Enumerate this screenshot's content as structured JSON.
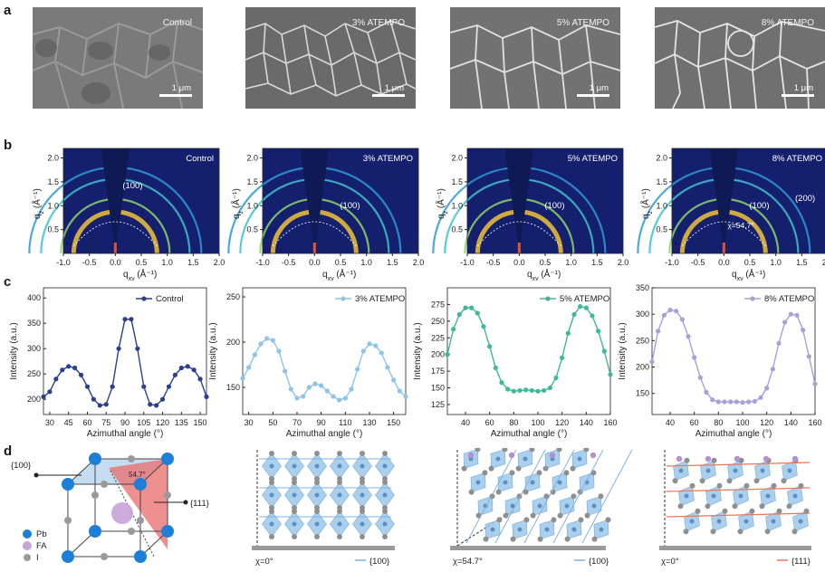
{
  "panel_letters": {
    "a": "a",
    "b": "b",
    "c": "c",
    "d": "d"
  },
  "sem": [
    {
      "label": "Control",
      "scale": "1 μm"
    },
    {
      "label": "3% ATEMPO",
      "scale": "1 μm"
    },
    {
      "label": "5% ATEMPO",
      "scale": "1 μm"
    },
    {
      "label": "8% ATEMPO",
      "scale": "1 μm"
    }
  ],
  "giwaxs": {
    "xlabel": "q",
    "xlabel_sub": "xy",
    "xlabel_unit": " (Å⁻¹)",
    "ylabel": "q",
    "ylabel_sub": "z",
    "ylabel_unit": " (Å⁻¹)",
    "xticks": [
      "-1.0",
      "-0.5",
      "0.0",
      "0.5",
      "1.0",
      "1.5",
      "2.0"
    ],
    "yticks": [
      "0.5",
      "1.0",
      "1.5",
      "2.0"
    ],
    "panels": [
      {
        "label": "Control",
        "peak": "(100)"
      },
      {
        "label": "3% ATEMPO",
        "peak": "(100)"
      },
      {
        "label": "5% ATEMPO",
        "peak": "(100)"
      },
      {
        "label": "8% ATEMPO",
        "peak": "(100)",
        "peak2": "(200)",
        "angle": "χ=54.7°"
      }
    ],
    "colors": {
      "bg": "#14206e",
      "wedge": "#0f1a55"
    }
  },
  "chart_data": [
    {
      "type": "line",
      "legend": "Control",
      "color": "#2a3f8f",
      "xlabel": "Azimuthal angle (°)",
      "ylabel": "Intensity (a.u.)",
      "xlim": [
        25,
        155
      ],
      "ylim": [
        170,
        420
      ],
      "xticks": [
        30,
        45,
        60,
        75,
        90,
        105,
        120,
        135,
        150
      ],
      "yticks": [
        200,
        250,
        300,
        350,
        400
      ],
      "x": [
        25,
        30,
        35,
        40,
        45,
        50,
        55,
        60,
        65,
        70,
        75,
        80,
        85,
        90,
        95,
        100,
        105,
        110,
        115,
        120,
        125,
        130,
        135,
        140,
        145,
        150,
        155
      ],
      "y": [
        205,
        215,
        240,
        258,
        265,
        262,
        248,
        225,
        200,
        188,
        190,
        225,
        300,
        358,
        358,
        300,
        225,
        190,
        188,
        200,
        225,
        248,
        262,
        265,
        258,
        240,
        205
      ]
    },
    {
      "type": "line",
      "legend": "3% ATEMPO",
      "color": "#8ec5e6",
      "xlabel": "Azimuthal angle (°)",
      "ylabel": "Intensity (a.u.)",
      "xlim": [
        25,
        160
      ],
      "ylim": [
        120,
        260
      ],
      "xticks": [
        30,
        50,
        70,
        90,
        110,
        130,
        150
      ],
      "yticks": [
        150,
        200,
        250
      ],
      "x": [
        25,
        30,
        35,
        40,
        45,
        50,
        55,
        60,
        65,
        70,
        75,
        80,
        85,
        90,
        95,
        100,
        105,
        110,
        115,
        120,
        125,
        130,
        135,
        140,
        145,
        150,
        155,
        160
      ],
      "y": [
        160,
        172,
        186,
        198,
        204,
        202,
        190,
        168,
        148,
        138,
        140,
        150,
        154,
        152,
        146,
        140,
        136,
        138,
        148,
        170,
        190,
        198,
        196,
        188,
        172,
        158,
        146,
        140
      ]
    },
    {
      "type": "line",
      "legend": "5% ATEMPO",
      "color": "#3fb89a",
      "xlabel": "Azimuthal angle (°)",
      "ylabel": "Intensity (a.u.)",
      "xlim": [
        25,
        160
      ],
      "ylim": [
        110,
        300
      ],
      "xticks": [
        40,
        60,
        80,
        100,
        120,
        140,
        160
      ],
      "yticks": [
        125,
        150,
        175,
        200,
        225,
        250,
        275
      ],
      "x": [
        25,
        30,
        35,
        40,
        45,
        50,
        55,
        60,
        65,
        70,
        75,
        80,
        85,
        90,
        95,
        100,
        105,
        110,
        115,
        120,
        125,
        130,
        135,
        140,
        145,
        150,
        155,
        160
      ],
      "y": [
        200,
        238,
        260,
        270,
        270,
        262,
        242,
        212,
        180,
        158,
        148,
        145,
        146,
        147,
        146,
        145,
        146,
        150,
        165,
        195,
        232,
        260,
        272,
        270,
        258,
        235,
        205,
        170
      ]
    },
    {
      "type": "line",
      "legend": "8% ATEMPO",
      "color": "#a7a1d6",
      "xlabel": "Azimuthal angle (°)",
      "ylabel": "Intensity (a.u.)",
      "xlim": [
        25,
        160
      ],
      "ylim": [
        110,
        350
      ],
      "xticks": [
        40,
        60,
        80,
        100,
        120,
        140,
        160
      ],
      "yticks": [
        150,
        200,
        250,
        300,
        350
      ],
      "x": [
        25,
        30,
        35,
        40,
        45,
        50,
        55,
        60,
        65,
        70,
        75,
        80,
        85,
        90,
        95,
        100,
        105,
        110,
        115,
        120,
        125,
        130,
        135,
        140,
        145,
        150,
        155,
        160
      ],
      "y": [
        210,
        268,
        298,
        308,
        306,
        290,
        258,
        218,
        180,
        152,
        138,
        134,
        134,
        134,
        134,
        133,
        134,
        135,
        142,
        160,
        196,
        245,
        285,
        300,
        298,
        270,
        220,
        168
      ]
    }
  ],
  "structure": {
    "labels": {
      "face100": "{100}",
      "face111": "{111}",
      "angle": "54.7°"
    },
    "legend": [
      {
        "label": "Pb",
        "color": "#1e7fd6"
      },
      {
        "label": "FA",
        "color": "#c8a2d8"
      },
      {
        "label": "I",
        "color": "#9a9a9a"
      }
    ],
    "lattice": [
      {
        "chi": "χ=0°",
        "plane": "{100}",
        "line": "#7fb3e0"
      },
      {
        "chi": "χ=54.7°",
        "plane": "{100}",
        "line": "#7fb3e0"
      },
      {
        "chi": "χ=0°",
        "plane": "{111}",
        "line": "#e8765a"
      }
    ]
  }
}
